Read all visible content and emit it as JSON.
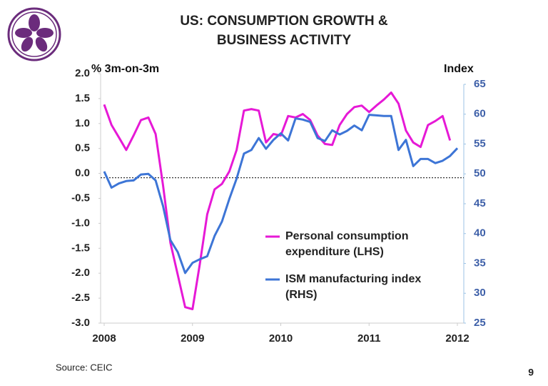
{
  "chart_data": {
    "type": "line",
    "title": "US: CONSUMPTION GROWTH & BUSINESS ACTIVITY",
    "y_label": "% 3m-on-3m",
    "y2_label": "Index",
    "source": "Source: CEIC",
    "page_number": "9",
    "x": [
      2008,
      2008.083,
      2008.167,
      2008.25,
      2008.333,
      2008.417,
      2008.5,
      2008.583,
      2008.667,
      2008.75,
      2008.833,
      2008.917,
      2009,
      2009.083,
      2009.167,
      2009.25,
      2009.333,
      2009.417,
      2009.5,
      2009.583,
      2009.667,
      2009.75,
      2009.833,
      2009.917,
      2010,
      2010.083,
      2010.167,
      2010.25,
      2010.333,
      2010.417,
      2010.5,
      2010.583,
      2010.667,
      2010.75,
      2010.833,
      2010.917,
      2011,
      2011.083,
      2011.167,
      2011.25,
      2011.333,
      2011.417,
      2011.5,
      2011.583,
      2011.667,
      2011.75,
      2011.833,
      2011.917,
      2012
    ],
    "xlim": [
      2008,
      2012
    ],
    "xticks": [
      2008,
      2009,
      2010,
      2011,
      2012
    ],
    "ylim": [
      -3,
      2
    ],
    "yticks": [
      {
        "value": 2,
        "label": "2.0"
      },
      1.5,
      {
        "value": 1,
        "label": "1.0"
      },
      0.5,
      {
        "value": 0,
        "label": "0.0"
      },
      -0.5,
      {
        "value": -1,
        "label": "-1.0"
      },
      -1.5,
      {
        "value": -2,
        "label": "-2.0"
      },
      -2.5,
      {
        "value": -3,
        "label": "-3.0"
      }
    ],
    "y2lim": [
      25,
      65
    ],
    "y2ticks": [
      65,
      60,
      55,
      50,
      45,
      40,
      35,
      30,
      25
    ],
    "series": [
      {
        "name": "Personal consumption expenditure (LHS)",
        "color": "#e619d6",
        "values": [
          1.38,
          0.97,
          0.72,
          0.47,
          0.76,
          1.07,
          1.12,
          0.79,
          -0.24,
          -1.39,
          -2.03,
          -2.68,
          -2.72,
          -1.82,
          -0.82,
          -0.32,
          -0.21,
          0.04,
          0.47,
          1.26,
          1.29,
          1.26,
          0.62,
          0.79,
          0.76,
          1.15,
          1.12,
          1.19,
          1.07,
          0.76,
          0.59,
          0.57,
          0.97,
          1.19,
          1.33,
          1.36,
          1.23,
          1.36,
          1.48,
          1.62,
          1.4,
          0.86,
          0.62,
          0.53,
          0.97,
          1.05,
          1.15,
          0.66,
          null
        ]
      },
      {
        "name": "ISM manufacturing index (RHS)",
        "color": "#3d75d6",
        "axis": "y2",
        "values": [
          50.4,
          47.7,
          48.4,
          48.8,
          48.9,
          49.9,
          50,
          48.9,
          44.6,
          38.9,
          36.9,
          33.4,
          35.1,
          35.7,
          36.2,
          39.6,
          42,
          45.8,
          49.2,
          53.4,
          54,
          56,
          54.2,
          55.7,
          56.8,
          55.6,
          59.3,
          59.1,
          58.7,
          56,
          55.5,
          57.3,
          56.6,
          57.2,
          58.1,
          57.3,
          59.9,
          59.8,
          59.7,
          59.7,
          54,
          55.7,
          51.3,
          52.5,
          52.5,
          51.8,
          52.2,
          53,
          54.3
        ]
      }
    ],
    "zero_line": true
  }
}
